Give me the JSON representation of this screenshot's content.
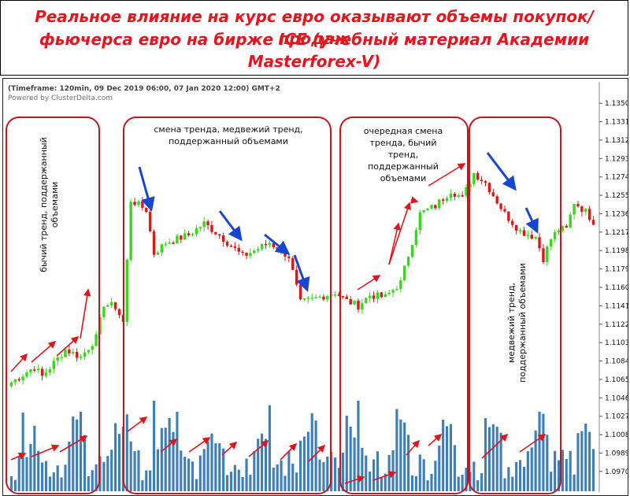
{
  "header": {
    "title_lines": [
      "Реальное влияние на курс евро оказывают объемы покупок/продаж",
      "фьючерса евро на бирже ICE (учебный материал Академии",
      "Masterforex-V)"
    ]
  },
  "chart_caption": {
    "timeframe": "(Timeframe: 120min, 09 Dec 2019 06:00, 07 Jan 2020 12:00) GMT+2",
    "powered_by": "Powered by ClusterDelta.com"
  },
  "colors": {
    "bull": "#39d81c",
    "bear": "#dc1818",
    "volume": "#3e7fb8",
    "frame": "#c8151b",
    "arrow_up": "#e2141a",
    "arrow_down": "#1746d0"
  },
  "annotations": [
    {
      "lines": [
        "бычий тренд, поддержанный",
        "объемами"
      ],
      "rotation": "vertical-up"
    },
    {
      "lines": [
        "смена тренда, медвежий тренд,",
        "поддержанный объемами"
      ],
      "rotation": "none"
    },
    {
      "lines": [
        "очередная смена",
        "тренда, бычий",
        "тренд,",
        "поддержанный",
        "объемами"
      ],
      "rotation": "none"
    },
    {
      "lines": [
        "медвежий тренд,",
        "поддержанный объемами"
      ],
      "rotation": "vertical-up"
    }
  ],
  "chart_data": {
    "type": "candlestick",
    "y_ticks": [
      "1.1350",
      "1.1331",
      "1.1312",
      "1.1293",
      "1.1274",
      "1.1255",
      "1.1236",
      "1.1217",
      "1.1198",
      "1.1179",
      "1.1160",
      "1.1141",
      "1.1122",
      "1.1103",
      "1.1084",
      "1.1065",
      "1.1046",
      "1.1027",
      "1.1008",
      "1.0989",
      "1.0970"
    ],
    "ylim": [
      1.0965,
      1.1355
    ],
    "waypoints": [
      {
        "i": 0,
        "p": 1.1062
      },
      {
        "i": 6,
        "p": 1.1078
      },
      {
        "i": 8,
        "p": 1.1068
      },
      {
        "i": 14,
        "p": 1.1096
      },
      {
        "i": 18,
        "p": 1.1088
      },
      {
        "i": 22,
        "p": 1.1108
      },
      {
        "i": 24,
        "p": 1.1143
      },
      {
        "i": 27,
        "p": 1.114
      },
      {
        "i": 29,
        "p": 1.1124
      },
      {
        "i": 31,
        "p": 1.125
      },
      {
        "i": 35,
        "p": 1.124
      },
      {
        "i": 37,
        "p": 1.1195
      },
      {
        "i": 40,
        "p": 1.1206
      },
      {
        "i": 46,
        "p": 1.1214
      },
      {
        "i": 50,
        "p": 1.1226
      },
      {
        "i": 54,
        "p": 1.1214
      },
      {
        "i": 60,
        "p": 1.1192
      },
      {
        "i": 64,
        "p": 1.12
      },
      {
        "i": 67,
        "p": 1.1206
      },
      {
        "i": 72,
        "p": 1.1192
      },
      {
        "i": 75,
        "p": 1.1144
      },
      {
        "i": 80,
        "p": 1.115
      },
      {
        "i": 84,
        "p": 1.1155
      },
      {
        "i": 87,
        "p": 1.1146
      },
      {
        "i": 90,
        "p": 1.1141
      },
      {
        "i": 93,
        "p": 1.1152
      },
      {
        "i": 97,
        "p": 1.115
      },
      {
        "i": 101,
        "p": 1.1165
      },
      {
        "i": 106,
        "p": 1.1236
      },
      {
        "i": 110,
        "p": 1.1244
      },
      {
        "i": 114,
        "p": 1.126
      },
      {
        "i": 117,
        "p": 1.1252
      },
      {
        "i": 120,
        "p": 1.1278
      },
      {
        "i": 123,
        "p": 1.1268
      },
      {
        "i": 128,
        "p": 1.1236
      },
      {
        "i": 132,
        "p": 1.1218
      },
      {
        "i": 136,
        "p": 1.1212
      },
      {
        "i": 138,
        "p": 1.119
      },
      {
        "i": 140,
        "p": 1.121
      },
      {
        "i": 142,
        "p": 1.122
      },
      {
        "i": 144,
        "p": 1.122
      },
      {
        "i": 146,
        "p": 1.1248
      },
      {
        "i": 149,
        "p": 1.1238
      },
      {
        "i": 151,
        "p": 1.1228
      }
    ],
    "candle_count": 152,
    "volume_max_pct": 100,
    "volume_seed": 7
  }
}
